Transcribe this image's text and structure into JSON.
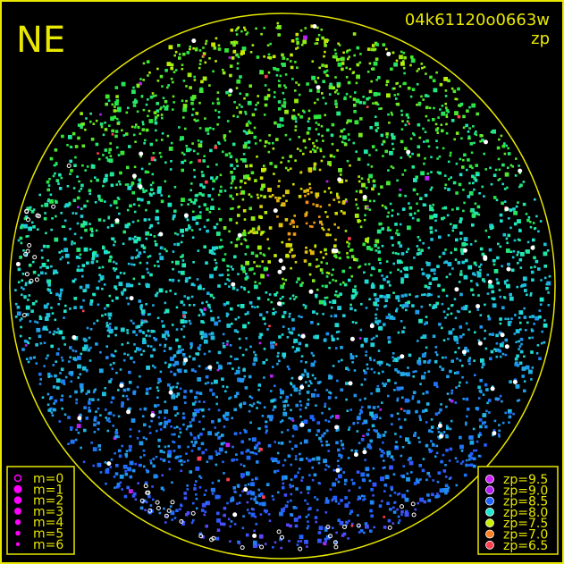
{
  "chart_data": {
    "type": "scatter",
    "title": "NE",
    "frame_id": "04k61120o0663w",
    "quantity": "zp",
    "grid": false,
    "colors": {
      "frame": "#e8e800",
      "background": "#000000"
    },
    "magnitude_legend": {
      "placement": "bottom-left",
      "entries": [
        {
          "label": "m=0",
          "style": "open-circle"
        },
        {
          "label": "m=1",
          "style": "filled"
        },
        {
          "label": "m=2",
          "style": "filled"
        },
        {
          "label": "m=3",
          "style": "filled"
        },
        {
          "label": "m=4",
          "style": "filled"
        },
        {
          "label": "m=5",
          "style": "filled"
        },
        {
          "label": "m=6",
          "style": "filled"
        }
      ],
      "color": "#ff00ff"
    },
    "zp_legend": {
      "placement": "bottom-right",
      "entries": [
        {
          "label": "zp=9.5",
          "zp": 9.5,
          "color": "#d020ff"
        },
        {
          "label": "zp=9.0",
          "zp": 9.0,
          "color": "#b020f0"
        },
        {
          "label": "zp=8.5",
          "zp": 8.5,
          "color": "#2060ff"
        },
        {
          "label": "zp=8.0",
          "zp": 8.0,
          "color": "#20e8d0"
        },
        {
          "label": "zp=7.5",
          "zp": 7.5,
          "color": "#c8f000"
        },
        {
          "label": "zp=7.0",
          "zp": 7.0,
          "color": "#ff8020"
        },
        {
          "label": "zp=6.5",
          "zp": 6.5,
          "color": "#ff4050"
        }
      ]
    }
  }
}
